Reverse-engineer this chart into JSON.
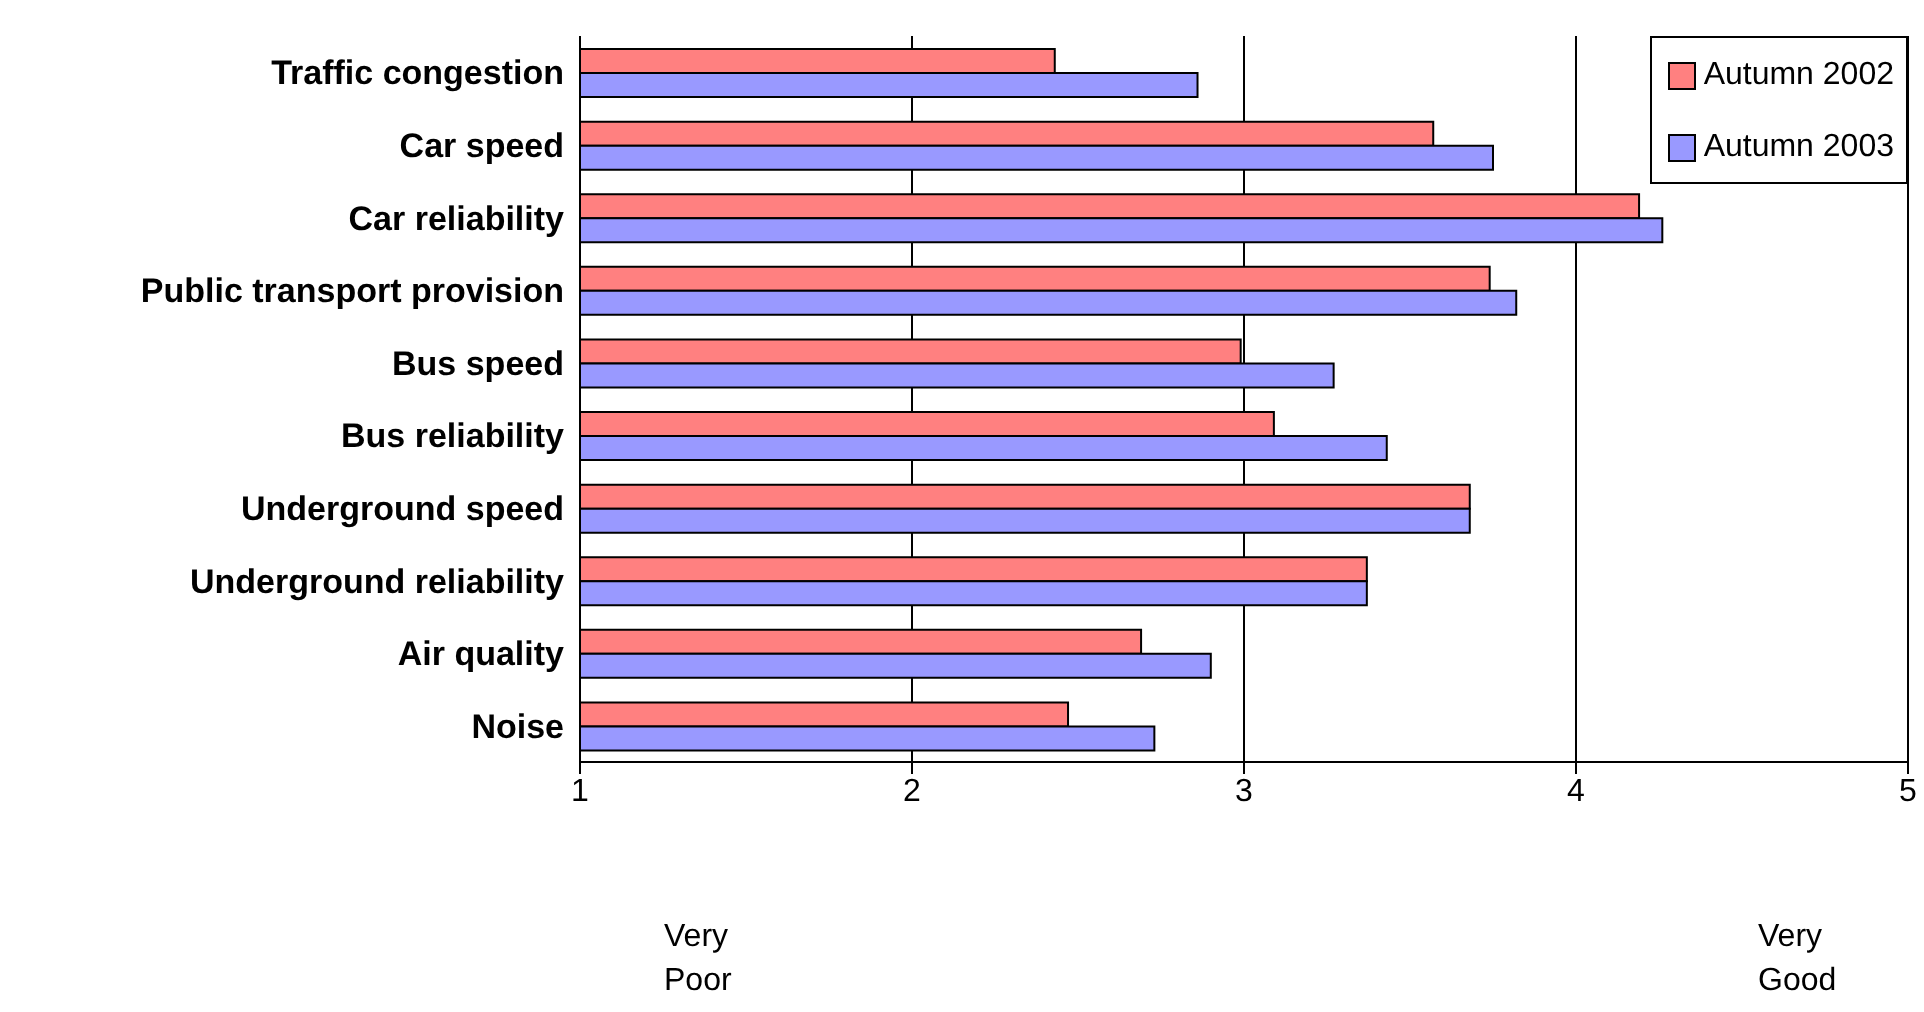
{
  "chart_data": {
    "type": "bar",
    "orientation": "horizontal",
    "categories": [
      "Traffic congestion",
      "Car speed",
      "Car reliability",
      "Public transport provision",
      "Bus speed",
      "Bus reliability",
      "Underground speed",
      "Underground reliability",
      "Air quality",
      "Noise"
    ],
    "series": [
      {
        "name": "Autumn 2002",
        "color": "#ff8080",
        "values": [
          2.43,
          3.57,
          4.19,
          3.74,
          2.99,
          3.09,
          3.68,
          3.37,
          2.69,
          2.47
        ]
      },
      {
        "name": "Autumn 2003",
        "color": "#9999ff",
        "values": [
          2.86,
          3.75,
          4.26,
          3.82,
          3.27,
          3.43,
          3.68,
          3.37,
          2.9,
          2.73
        ]
      }
    ],
    "xlim": [
      1,
      5
    ],
    "xticks": [
      1,
      2,
      3,
      4,
      5
    ],
    "grid": "x",
    "legend": "top right",
    "annotations": [
      "Very Poor",
      "Very Good"
    ]
  }
}
